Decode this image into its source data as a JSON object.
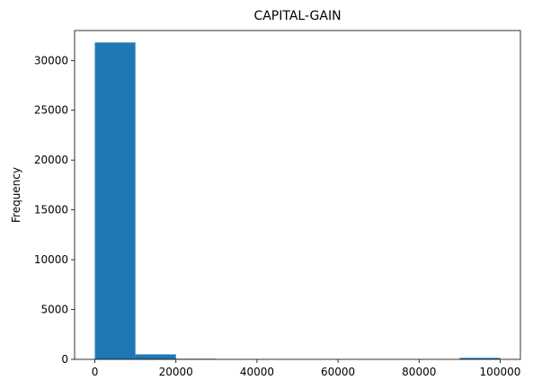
{
  "chart_data": {
    "type": "bar",
    "title": "CAPITAL-GAIN",
    "xlabel": "",
    "ylabel": "Frequency",
    "xlim": [
      -5000,
      105000
    ],
    "ylim": [
      0,
      33000
    ],
    "bin_edges": [
      0,
      9999.9,
      19999.8,
      29999.7,
      39999.6,
      49999.5,
      59999.4,
      69999.3,
      79999.2,
      89999.1,
      99999
    ],
    "values": [
      31800,
      500,
      60,
      8,
      0,
      0,
      0,
      0,
      0,
      150
    ],
    "x_ticks": [
      0,
      20000,
      40000,
      60000,
      80000,
      100000
    ],
    "x_tick_labels": [
      "0",
      "20000",
      "40000",
      "60000",
      "80000",
      "100000"
    ],
    "y_ticks": [
      0,
      5000,
      10000,
      15000,
      20000,
      25000,
      30000
    ],
    "y_tick_labels": [
      "0",
      "5000",
      "10000",
      "15000",
      "20000",
      "25000",
      "30000"
    ],
    "bar_color": "#1f77b4",
    "grid": false,
    "legend": "none"
  }
}
